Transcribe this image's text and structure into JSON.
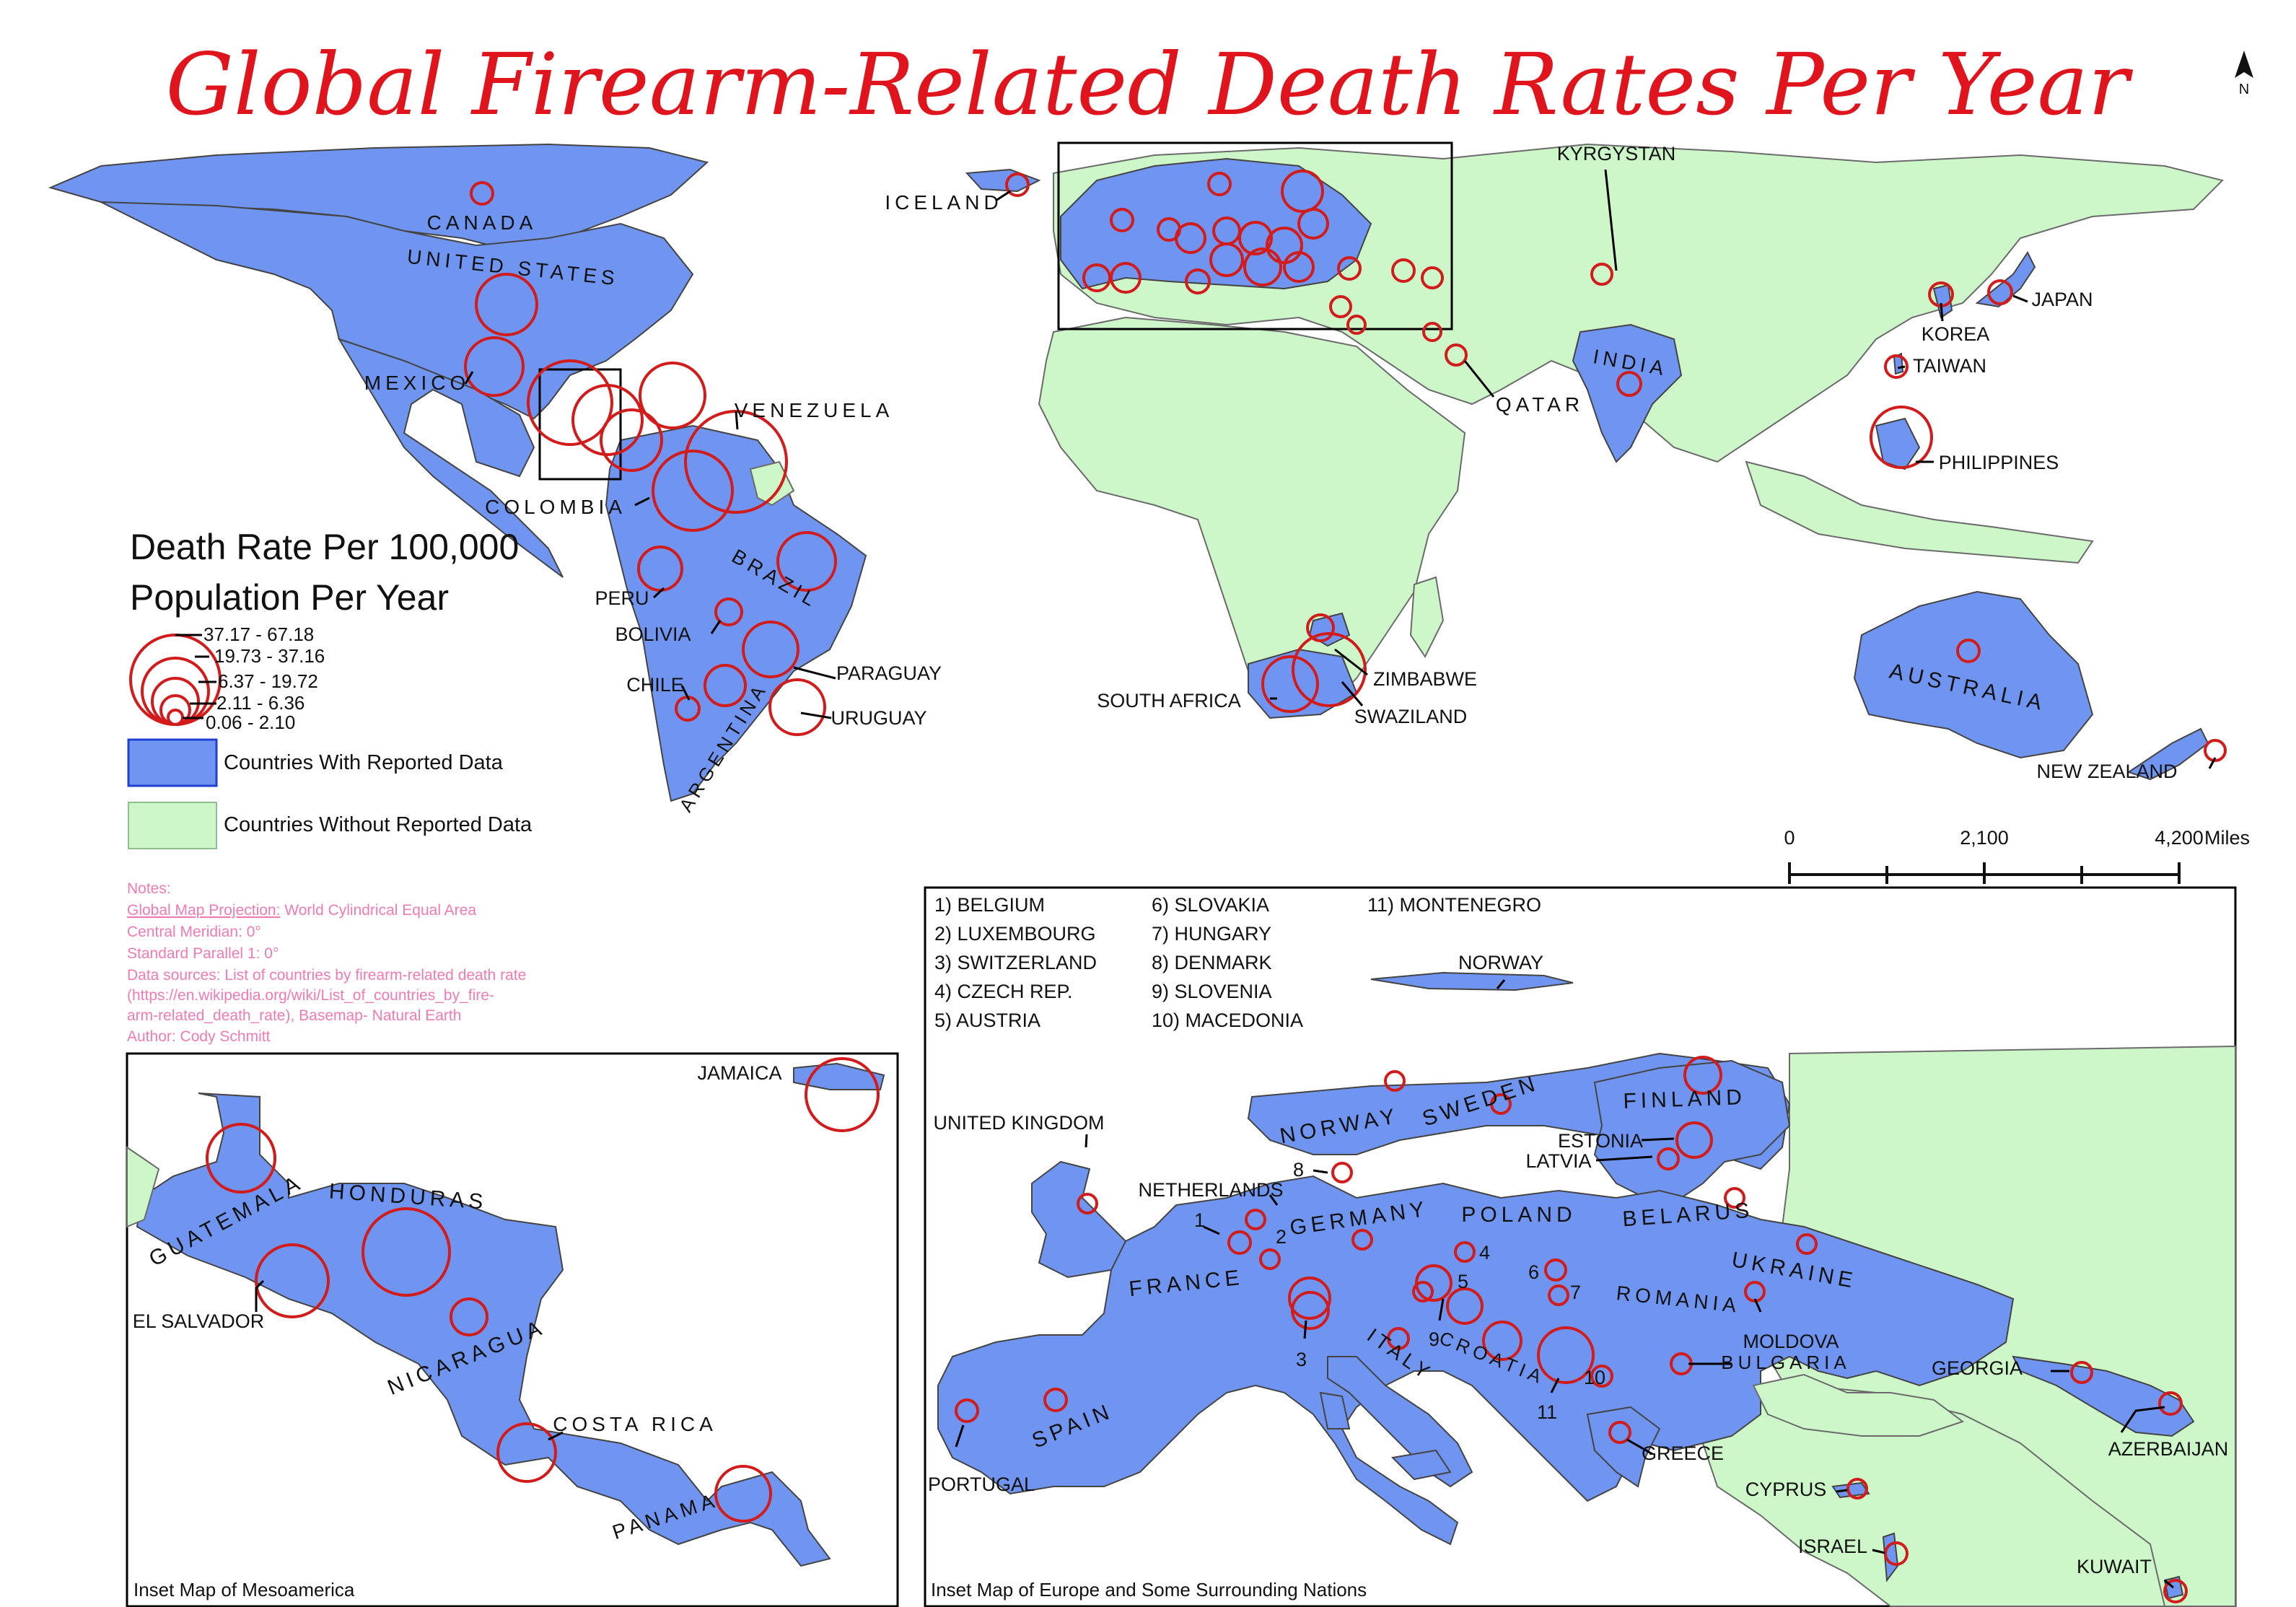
{
  "title": "Global Firearm-Related Death Rates Per Year",
  "north_arrow": "N",
  "legend": {
    "title_line1": "Death Rate Per 100,000",
    "title_line2": "Population Per Year",
    "classes": [
      "37.17 - 67.18",
      "19.73 - 37.16",
      "6.37 - 19.72",
      "2.11 - 6.36",
      "0.06 - 2.10"
    ],
    "reported": "Countries With Reported Data",
    "unreported": "Countries Without Reported Data"
  },
  "colors": {
    "reported": "#7095f0",
    "unreported": "#cdf7c8",
    "circle": "#d21b1b",
    "title": "#e0141c",
    "notes": "#f07ab3"
  },
  "scale": {
    "ticks": [
      "0",
      "2,100",
      "4,200"
    ],
    "unit": "Miles"
  },
  "notes": {
    "heading": "Notes:",
    "projection_label": "Global Map Projection:",
    "projection_value": " World Cylindrical Equal Area",
    "meridian": "Central Meridian: 0°",
    "parallel": "Standard Parallel 1: 0°",
    "source1": "Data sources: List of countries by firearm-related death rate",
    "source2": "(https://en.wikipedia.org/wiki/List_of_countries_by_fire-",
    "source3": "arm-related_death_rate), Basemap- Natural Earth",
    "author": "Author: Cody Schmitt"
  },
  "world_labels": {
    "canada": "CANADA",
    "united_states": "UNITED STATES",
    "mexico": "MEXICO",
    "venezuela": "VENEZUELA",
    "colombia": "COLOMBIA",
    "brazil": "BRAZIL",
    "peru": "PERU",
    "bolivia": "BOLIVIA",
    "chile": "CHILE",
    "paraguay": "PARAGUAY",
    "uruguay": "URUGUAY",
    "argentina": "ARGENTINA",
    "iceland": "ICELAND",
    "kyrgystan": "KYRGYSTAN",
    "qatar": "QATAR",
    "india": "INDIA",
    "korea": "KOREA",
    "japan": "JAPAN",
    "taiwan": "TAIWAN",
    "philippines": "PHILIPPINES",
    "south_africa": "SOUTH AFRICA",
    "zimbabwe": "ZIMBABWE",
    "swaziland": "SWAZILAND",
    "australia": "AUSTRALIA",
    "new_zealand": "NEW ZEALAND"
  },
  "meso": {
    "caption": "Inset Map of Mesoamerica",
    "jamaica": "JAMAICA",
    "guatemala": "GUATEMALA",
    "honduras": "HONDURAS",
    "el_salvador": "EL SALVADOR",
    "nicaragua": "NICARAGUA",
    "costa_rica": "COSTA RICA",
    "panama": "PANAMA"
  },
  "europe": {
    "caption": "Inset Map of Europe and Some Surrounding Nations",
    "key_col1": [
      "1) BELGIUM",
      "2) LUXEMBOURG",
      "3) SWITZERLAND",
      "4) CZECH REP.",
      "5) AUSTRIA"
    ],
    "key_col2": [
      "6) SLOVAKIA",
      "7) HUNGARY",
      "8) DENMARK",
      "9) SLOVENIA",
      "10) MACEDONIA"
    ],
    "key_col3": [
      "11) MONTENEGRO"
    ],
    "norway_top": "NORWAY",
    "united_kingdom": "UNITED KINGDOM",
    "netherlands": "NETHERLANDS",
    "norway": "NORWAY",
    "sweden": "SWEDEN",
    "finland": "FINLAND",
    "estonia": "ESTONIA",
    "latvia": "LATVIA",
    "germany": "GERMANY",
    "poland": "POLAND",
    "belarus": "BELARUS",
    "ukraine": "UKRAINE",
    "france": "FRANCE",
    "romania": "ROMANIA",
    "moldova": "MOLDOVA",
    "bulgaria": "BULGARIA",
    "italy": "ITALY",
    "croatia": "CROATIA",
    "spain": "SPAIN",
    "portugal": "PORTUGAL",
    "greece": "GREECE",
    "georgia": "GEORGIA",
    "azerbaijan": "AZERBAIJAN",
    "cyprus": "CYPRUS",
    "israel": "ISRAEL",
    "kuwait": "KUWAIT",
    "n1": "1",
    "n2": "2",
    "n3": "3",
    "n4": "4",
    "n5": "5",
    "n6": "6",
    "n7": "7",
    "n8": "8",
    "n9": "9",
    "n10": "10",
    "n11": "11"
  }
}
